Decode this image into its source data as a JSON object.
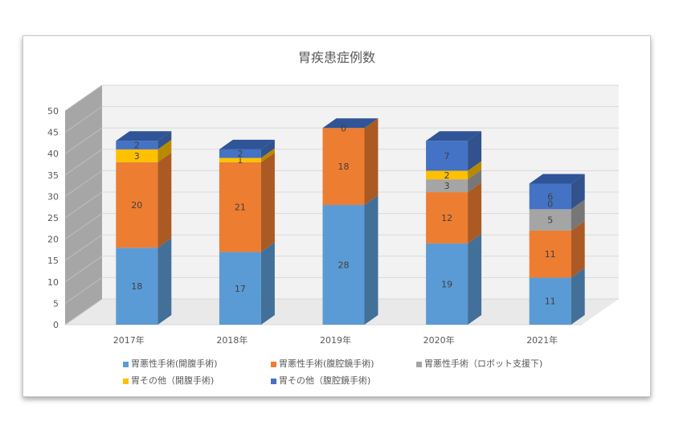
{
  "chart_data": {
    "type": "bar",
    "stacked": true,
    "three_d": true,
    "title": "胃疾患症例数",
    "categories": [
      "2017年",
      "2018年",
      "2019年",
      "2020年",
      "2021年"
    ],
    "ylim": [
      0,
      50
    ],
    "yticks": [
      "0",
      "5",
      "10",
      "15",
      "20",
      "25",
      "30",
      "35",
      "40",
      "45",
      "50"
    ],
    "grid": true,
    "legend_position": "bottom",
    "series": [
      {
        "name": "胃悪性手術(開腹手術)",
        "color": "#5b9bd5",
        "values": [
          18,
          17,
          28,
          19,
          11
        ]
      },
      {
        "name": "胃悪性手術(腹腔鏡手術)",
        "color": "#ed7d31",
        "values": [
          20,
          21,
          18,
          12,
          11
        ]
      },
      {
        "name": "胃悪性手術（ロボット支援下)",
        "color": "#a5a5a5",
        "values": [
          null,
          null,
          null,
          3,
          5
        ]
      },
      {
        "name": "胃その他（開腹手術)",
        "color": "#ffc000",
        "values": [
          3,
          1,
          null,
          2,
          null
        ]
      },
      {
        "name": "胃その他（腹腔鏡手術)",
        "color": "#4472c4",
        "values": [
          2,
          2,
          0,
          7,
          6
        ]
      }
    ],
    "extra_labels": [
      {
        "category": "2021年",
        "after_series": 2,
        "text": "0"
      }
    ]
  }
}
